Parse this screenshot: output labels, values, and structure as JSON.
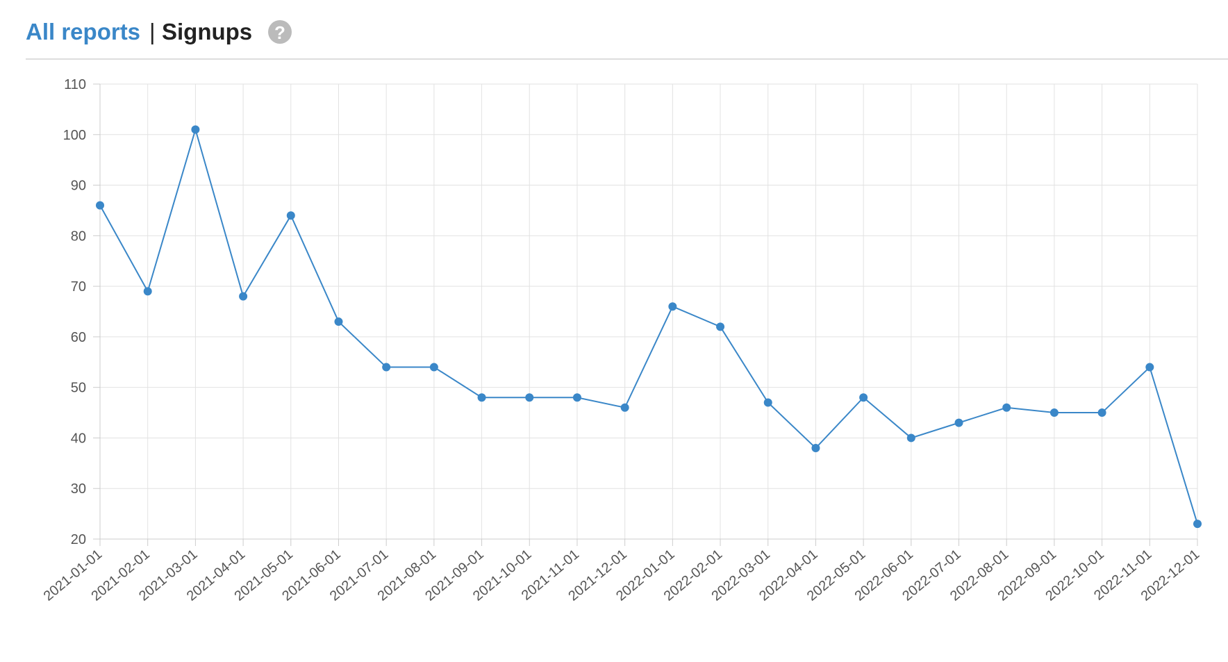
{
  "header": {
    "link": "All reports",
    "separator": "|",
    "title": "Signups",
    "help": "?"
  },
  "chart_data": {
    "type": "line",
    "categories": [
      "2021-01-01",
      "2021-02-01",
      "2021-03-01",
      "2021-04-01",
      "2021-05-01",
      "2021-06-01",
      "2021-07-01",
      "2021-08-01",
      "2021-09-01",
      "2021-10-01",
      "2021-11-01",
      "2021-12-01",
      "2022-01-01",
      "2022-02-01",
      "2022-03-01",
      "2022-04-01",
      "2022-05-01",
      "2022-06-01",
      "2022-07-01",
      "2022-08-01",
      "2022-09-01",
      "2022-10-01",
      "2022-11-01",
      "2022-12-01"
    ],
    "values": [
      86,
      69,
      101,
      68,
      84,
      63,
      54,
      54,
      48,
      48,
      48,
      46,
      66,
      62,
      47,
      38,
      48,
      40,
      43,
      46,
      45,
      45,
      54,
      23
    ],
    "color": "#3a87c8",
    "ylim": [
      20,
      110
    ],
    "yticks": [
      20,
      30,
      40,
      50,
      60,
      70,
      80,
      90,
      100,
      110
    ],
    "grid": true
  }
}
